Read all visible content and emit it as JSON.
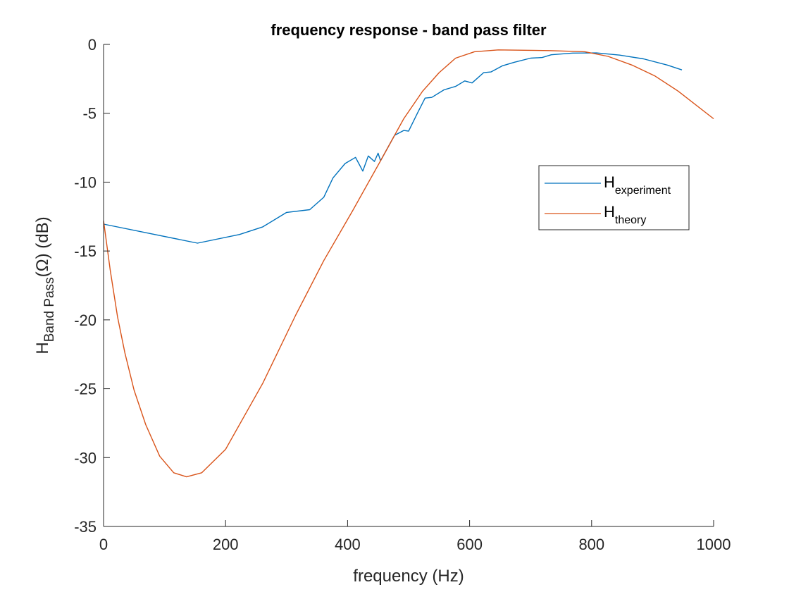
{
  "chart_data": {
    "type": "line",
    "title": "frequency response - band pass filter",
    "xlabel": "frequency (Hz)",
    "ylabel": {
      "main": "H",
      "sub": "Band Pass",
      "rest": "(Ω) (dB)"
    },
    "xlim": [
      0,
      1000
    ],
    "ylim": [
      -35,
      0
    ],
    "xticks": [
      0,
      200,
      400,
      600,
      800,
      1000
    ],
    "yticks": [
      0,
      -5,
      -10,
      -15,
      -20,
      -25,
      -30,
      -35
    ],
    "grid": false,
    "legend_position": "right",
    "series": [
      {
        "name": {
          "main": "H",
          "sub": "experiment"
        },
        "color": "#0072BD",
        "x": [
          0,
          154,
          223,
          261,
          300,
          338,
          361,
          376,
          396,
          413,
          425,
          434,
          444,
          450,
          454,
          477,
          492,
          500,
          515,
          527,
          538,
          558,
          577,
          592,
          604,
          623,
          635,
          654,
          673,
          700,
          719,
          734,
          769,
          808,
          846,
          885,
          924,
          948
        ],
        "y": [
          -13.05,
          -14.43,
          -13.8,
          -13.25,
          -12.2,
          -12.0,
          -11.1,
          -9.7,
          -8.65,
          -8.2,
          -9.2,
          -8.1,
          -8.5,
          -7.9,
          -8.45,
          -6.6,
          -6.25,
          -6.3,
          -4.95,
          -3.9,
          -3.85,
          -3.3,
          -3.05,
          -2.65,
          -2.8,
          -2.05,
          -2.0,
          -1.55,
          -1.3,
          -1.0,
          -0.95,
          -0.75,
          -0.63,
          -0.62,
          -0.78,
          -1.05,
          -1.5,
          -1.85
        ]
      },
      {
        "name": {
          "main": "H",
          "sub": "theory"
        },
        "color": "#D95319",
        "x": [
          0,
          11,
          23,
          35,
          50,
          69,
          92,
          115,
          136,
          161,
          200,
          261,
          315,
          361,
          408,
          454,
          492,
          523,
          550,
          577,
          608,
          647,
          731,
          789,
          827,
          866,
          904,
          942,
          1000
        ],
        "y": [
          -12.8,
          -16.4,
          -19.8,
          -22.4,
          -25.1,
          -27.6,
          -29.9,
          -31.1,
          -31.4,
          -31.1,
          -29.4,
          -24.6,
          -19.65,
          -15.7,
          -12.1,
          -8.45,
          -5.4,
          -3.4,
          -2.05,
          -1.0,
          -0.53,
          -0.4,
          -0.45,
          -0.53,
          -0.87,
          -1.5,
          -2.3,
          -3.4,
          -5.4
        ]
      }
    ]
  }
}
